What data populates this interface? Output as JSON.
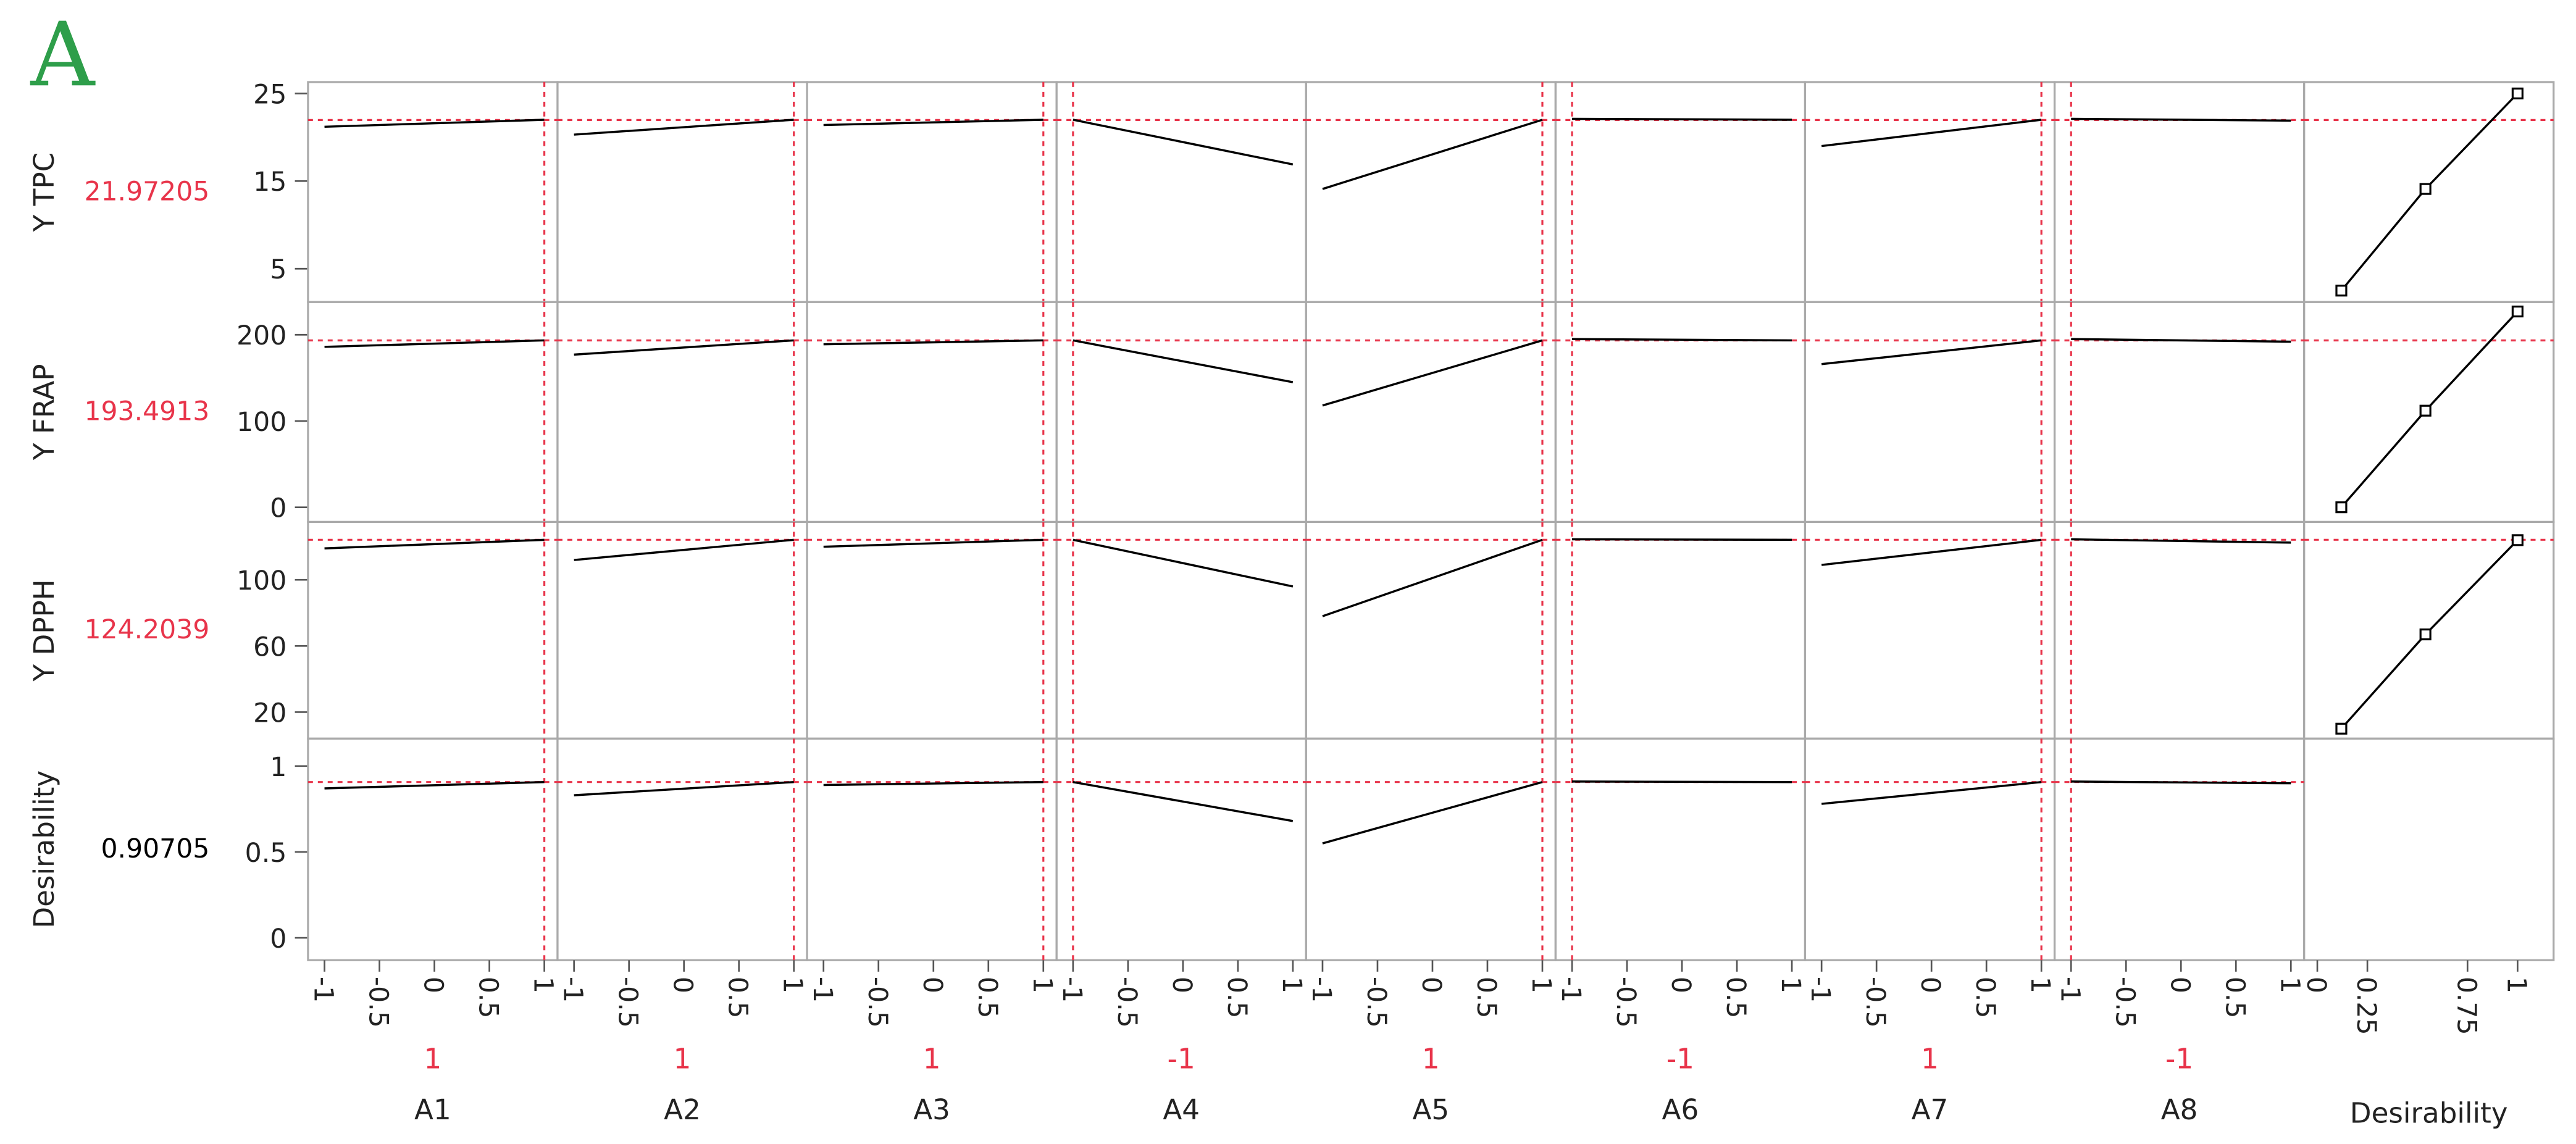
{
  "chart_data": {
    "type": "profiler",
    "title": "A",
    "title_color": "#2e9e4a",
    "line_color": "#000000",
    "current_color": "#e8344a",
    "factors": [
      {
        "name": "A1",
        "current": 1,
        "x": [
          -1,
          1
        ],
        "xlim": [
          -1.15,
          1.12
        ],
        "xticks": [
          -1,
          -0.5,
          0,
          0.5,
          1
        ]
      },
      {
        "name": "A2",
        "current": 1,
        "x": [
          -1,
          1
        ],
        "xlim": [
          -1.15,
          1.12
        ],
        "xticks": [
          -1,
          -0.5,
          0,
          0.5,
          1
        ]
      },
      {
        "name": "A3",
        "current": 1,
        "x": [
          -1,
          1
        ],
        "xlim": [
          -1.15,
          1.12
        ],
        "xticks": [
          -1,
          -0.5,
          0,
          0.5,
          1
        ]
      },
      {
        "name": "A4",
        "current": -1,
        "x": [
          -1,
          1
        ],
        "xlim": [
          -1.15,
          1.12
        ],
        "xticks": [
          -1,
          -0.5,
          0,
          0.5,
          1
        ]
      },
      {
        "name": "A5",
        "current": 1,
        "x": [
          -1,
          1
        ],
        "xlim": [
          -1.15,
          1.12
        ],
        "xticks": [
          -1,
          -0.5,
          0,
          0.5,
          1
        ]
      },
      {
        "name": "A6",
        "current": -1,
        "x": [
          -1,
          1
        ],
        "xlim": [
          -1.15,
          1.12
        ],
        "xticks": [
          -1,
          -0.5,
          0,
          0.5,
          1
        ]
      },
      {
        "name": "A7",
        "current": 1,
        "x": [
          -1,
          1
        ],
        "xlim": [
          -1.15,
          1.12
        ],
        "xticks": [
          -1,
          -0.5,
          0,
          0.5,
          1
        ]
      },
      {
        "name": "A8",
        "current": -1,
        "x": [
          -1,
          1
        ],
        "xlim": [
          -1.15,
          1.12
        ],
        "xticks": [
          -1,
          -0.5,
          0,
          0.5,
          1
        ]
      }
    ],
    "desirability": {
      "name": "Desirability",
      "x": [
        0.12,
        0.54,
        1
      ],
      "xlim": [
        -0.066,
        1.18
      ],
      "xticks": [
        0,
        0.25,
        0.75,
        1
      ]
    },
    "responses": [
      {
        "name": "Y TPC",
        "current": 21.97205,
        "color": "#e8344a",
        "ylim": [
          1.2,
          26.3
        ],
        "yticks": [
          5,
          15,
          25
        ],
        "profiles": [
          [
            21.2,
            22.0
          ],
          [
            20.3,
            22.0
          ],
          [
            21.4,
            22.0
          ],
          [
            22.0,
            16.9
          ],
          [
            14.1,
            22.0
          ],
          [
            22.1,
            22.0
          ],
          [
            19.0,
            22.0
          ],
          [
            22.1,
            21.9
          ]
        ],
        "desirability_values": [
          2.5,
          14.1,
          25
        ]
      },
      {
        "name": "Y FRAP",
        "current": 193.4913,
        "color": "#e8344a",
        "ylim": [
          -17,
          238
        ],
        "yticks": [
          0,
          100,
          200
        ],
        "profiles": [
          [
            186,
            193.5
          ],
          [
            177,
            193.5
          ],
          [
            189,
            193.5
          ],
          [
            193.5,
            145
          ],
          [
            118,
            193.5
          ],
          [
            195,
            193.5
          ],
          [
            166,
            193.5
          ],
          [
            195,
            192
          ]
        ],
        "desirability_values": [
          0,
          112,
          227
        ]
      },
      {
        "name": "Y DPPH",
        "current": 124.2039,
        "color": "#e8344a",
        "ylim": [
          4,
          135
        ],
        "yticks": [
          20,
          60,
          100
        ],
        "profiles": [
          [
            119,
            124.2
          ],
          [
            112,
            124.2
          ],
          [
            120,
            124.2
          ],
          [
            124.2,
            96
          ],
          [
            78,
            124.2
          ],
          [
            124.5,
            124.2
          ],
          [
            109,
            124.2
          ],
          [
            124.5,
            122.5
          ]
        ],
        "desirability_values": [
          10,
          67,
          124
        ]
      },
      {
        "name": "Desirability",
        "current": 0.90705,
        "color": "#000000",
        "ylim": [
          -0.13,
          1.16
        ],
        "yticks": [
          0,
          0.5,
          1
        ],
        "profiles": [
          [
            0.87,
            0.907
          ],
          [
            0.83,
            0.907
          ],
          [
            0.89,
            0.907
          ],
          [
            0.907,
            0.68
          ],
          [
            0.55,
            0.907
          ],
          [
            0.91,
            0.907
          ],
          [
            0.78,
            0.907
          ],
          [
            0.91,
            0.9
          ]
        ]
      }
    ]
  }
}
